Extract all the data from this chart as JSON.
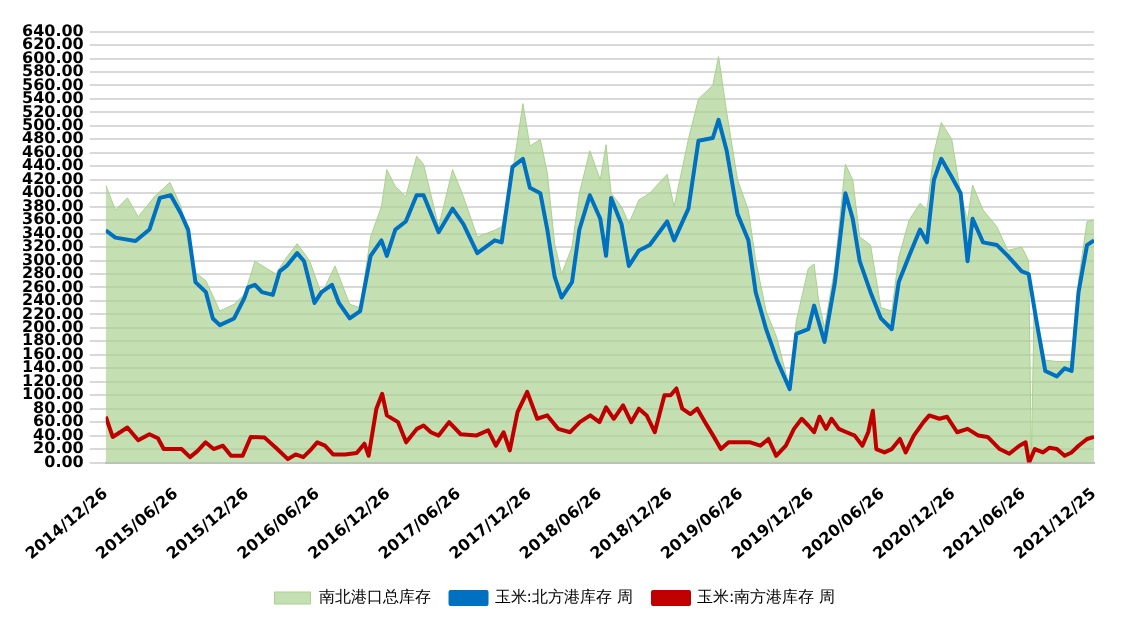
{
  "chart_data": {
    "type": "line",
    "legend": "bottom",
    "grid": "y",
    "marker": "none",
    "line_style": "solid",
    "xlim": [
      "2014-12-26",
      "2021-12-25"
    ],
    "xticks": [
      {
        "value": "2014-12-26",
        "label": "2014/12/26"
      },
      {
        "value": "2015-06-26",
        "label": "2015/06/26"
      },
      {
        "value": "2015-12-26",
        "label": "2015/12/26"
      },
      {
        "value": "2016-06-26",
        "label": "2016/06/26"
      },
      {
        "value": "2016-12-26",
        "label": "2016/12/26"
      },
      {
        "value": "2017-06-26",
        "label": "2017/06/26"
      },
      {
        "value": "2017-12-26",
        "label": "2017/12/26"
      },
      {
        "value": "2018-06-26",
        "label": "2018/06/26"
      },
      {
        "value": "2018-12-26",
        "label": "2018/12/26"
      },
      {
        "value": "2019-06-26",
        "label": "2019/06/26"
      },
      {
        "value": "2019-12-26",
        "label": "2019/12/26"
      },
      {
        "value": "2020-06-26",
        "label": "2020/06/26"
      },
      {
        "value": "2020-12-26",
        "label": "2020/12/26"
      },
      {
        "value": "2021-06-26",
        "label": "2021/06/26"
      },
      {
        "value": "2021-12-25",
        "label": "2021/12/25"
      }
    ],
    "ylim": [
      0,
      640
    ],
    "yticks": [
      {
        "value": 0,
        "label": "0.00"
      },
      {
        "value": 20,
        "label": "20.00"
      },
      {
        "value": 40,
        "label": "40.00"
      },
      {
        "value": 60,
        "label": "60.00"
      },
      {
        "value": 80,
        "label": "80.00"
      },
      {
        "value": 100,
        "label": "100.00"
      },
      {
        "value": 120,
        "label": "120.00"
      },
      {
        "value": 140,
        "label": "140.00"
      },
      {
        "value": 160,
        "label": "160.00"
      },
      {
        "value": 180,
        "label": "180.00"
      },
      {
        "value": 200,
        "label": "200.00"
      },
      {
        "value": 220,
        "label": "220.00"
      },
      {
        "value": 240,
        "label": "240.00"
      },
      {
        "value": 260,
        "label": "260.00"
      },
      {
        "value": 280,
        "label": "280.00"
      },
      {
        "value": 300,
        "label": "300.00"
      },
      {
        "value": 320,
        "label": "320.00"
      },
      {
        "value": 340,
        "label": "340.00"
      },
      {
        "value": 360,
        "label": "360.00"
      },
      {
        "value": 380,
        "label": "380.00"
      },
      {
        "value": 400,
        "label": "400.00"
      },
      {
        "value": 420,
        "label": "420.00"
      },
      {
        "value": 440,
        "label": "440.00"
      },
      {
        "value": 460,
        "label": "460.00"
      },
      {
        "value": 480,
        "label": "480.00"
      },
      {
        "value": 500,
        "label": "500.00"
      },
      {
        "value": 520,
        "label": "520.00"
      },
      {
        "value": 540,
        "label": "540.00"
      },
      {
        "value": 560,
        "label": "560.00"
      },
      {
        "value": 580,
        "label": "580.00"
      },
      {
        "value": 600,
        "label": "600.00"
      },
      {
        "value": 620,
        "label": "620.00"
      },
      {
        "value": 640,
        "label": "640.00"
      }
    ],
    "series": [
      {
        "name": "南北港口总库存",
        "type": "area",
        "color": "#a9d18e",
        "x": [
          "2014-12-26",
          "2015-01-20",
          "2015-02-20",
          "2015-03-20",
          "2015-05-01",
          "2015-06-10",
          "2015-07-09",
          "2015-08-10",
          "2015-09-11",
          "2015-10-17",
          "2015-11-23",
          "2015-12-20",
          "2016-01-16",
          "2016-02-10",
          "2016-03-10",
          "2016-04-07",
          "2016-05-04",
          "2016-06-05",
          "2016-07-06",
          "2016-08-10",
          "2016-09-17",
          "2016-10-14",
          "2016-11-10",
          "2016-12-08",
          "2016-12-22",
          "2017-01-13",
          "2017-02-09",
          "2017-03-09",
          "2017-03-27",
          "2017-05-05",
          "2017-06-10",
          "2017-07-08",
          "2017-08-13",
          "2017-09-27",
          "2017-10-15",
          "2017-11-12",
          "2017-12-09",
          "2017-12-27",
          "2018-01-23",
          "2018-02-10",
          "2018-03-01",
          "2018-03-19",
          "2018-04-15",
          "2018-05-04",
          "2018-05-31",
          "2018-06-27",
          "2018-07-12",
          "2018-07-25",
          "2018-08-21",
          "2018-09-09",
          "2018-10-05",
          "2018-11-02",
          "2018-12-17",
          "2019-01-04",
          "2019-02-10",
          "2019-03-08",
          "2019-04-14",
          "2019-04-29",
          "2019-05-20",
          "2019-06-17",
          "2019-07-15",
          "2019-08-03",
          "2019-08-30",
          "2019-09-27",
          "2019-10-30",
          "2019-11-16",
          "2019-12-17",
          "2020-01-01",
          "2020-01-13",
          "2020-01-28",
          "2020-02-24",
          "2020-03-22",
          "2020-04-10",
          "2020-04-28",
          "2020-05-26",
          "2020-06-22",
          "2020-07-20",
          "2020-08-07",
          "2020-09-03",
          "2020-10-01",
          "2020-10-19",
          "2020-11-06",
          "2020-11-25",
          "2020-12-22",
          "2021-01-14",
          "2021-02-01",
          "2021-02-14",
          "2021-03-13",
          "2021-04-18",
          "2021-05-16",
          "2021-06-21",
          "2021-07-09",
          "2021-07-16",
          "2021-07-23",
          "2021-08-21",
          "2021-09-20",
          "2021-10-10",
          "2021-10-28",
          "2021-11-15",
          "2021-12-07",
          "2021-12-25"
        ],
        "values": [
          412,
          375,
          393,
          365,
          395,
          416,
          380,
          284,
          270,
          225,
          235,
          250,
          299,
          290,
          280,
          305,
          325,
          300,
          250,
          292,
          235,
          230,
          335,
          380,
          435,
          410,
          395,
          455,
          443,
          350,
          435,
          395,
          335,
          345,
          350,
          430,
          533,
          470,
          480,
          430,
          325,
          280,
          320,
          400,
          463,
          420,
          472,
          400,
          380,
          355,
          390,
          400,
          428,
          380,
          480,
          540,
          560,
          603,
          520,
          420,
          375,
          300,
          225,
          185,
          110,
          210,
          288,
          295,
          240,
          200,
          290,
          443,
          420,
          335,
          323,
          230,
          225,
          305,
          360,
          385,
          375,
          460,
          505,
          480,
          400,
          360,
          412,
          375,
          350,
          315,
          320,
          300,
          0,
          235,
          152,
          150,
          150,
          150,
          270,
          358,
          360
        ]
      },
      {
        "name": "玉米:北方港库存 周",
        "type": "line",
        "color": "#0070c0",
        "x": [
          "2014-12-26",
          "2015-01-20",
          "2015-03-13",
          "2015-04-18",
          "2015-05-15",
          "2015-06-12",
          "2015-07-09",
          "2015-07-27",
          "2015-08-15",
          "2015-09-11",
          "2015-09-29",
          "2015-10-17",
          "2015-11-23",
          "2015-12-20",
          "2015-12-29",
          "2016-01-16",
          "2016-02-03",
          "2016-03-02",
          "2016-03-20",
          "2016-04-07",
          "2016-05-04",
          "2016-05-22",
          "2016-06-18",
          "2016-07-06",
          "2016-08-02",
          "2016-08-20",
          "2016-09-17",
          "2016-10-14",
          "2016-11-10",
          "2016-12-08",
          "2016-12-22",
          "2017-01-13",
          "2017-02-09",
          "2017-03-09",
          "2017-03-27",
          "2017-05-05",
          "2017-06-10",
          "2017-07-08",
          "2017-08-13",
          "2017-09-27",
          "2017-10-15",
          "2017-11-12",
          "2017-12-09",
          "2017-12-27",
          "2018-01-23",
          "2018-02-10",
          "2018-03-01",
          "2018-03-19",
          "2018-04-15",
          "2018-05-04",
          "2018-05-31",
          "2018-06-27",
          "2018-07-12",
          "2018-07-25",
          "2018-08-21",
          "2018-09-09",
          "2018-10-05",
          "2018-11-02",
          "2018-12-17",
          "2019-01-04",
          "2019-02-10",
          "2019-03-08",
          "2019-04-14",
          "2019-04-29",
          "2019-05-20",
          "2019-06-17",
          "2019-07-15",
          "2019-08-03",
          "2019-08-30",
          "2019-09-27",
          "2019-10-30",
          "2019-11-16",
          "2019-12-17",
          "2020-01-01",
          "2020-01-28",
          "2020-02-24",
          "2020-03-22",
          "2020-04-10",
          "2020-04-28",
          "2020-05-26",
          "2020-06-22",
          "2020-07-20",
          "2020-08-07",
          "2020-09-03",
          "2020-10-01",
          "2020-10-19",
          "2020-11-06",
          "2020-11-25",
          "2020-12-22",
          "2021-01-14",
          "2021-02-01",
          "2021-02-14",
          "2021-03-13",
          "2021-04-18",
          "2021-05-16",
          "2021-06-21",
          "2021-07-09",
          "2021-07-28",
          "2021-08-21",
          "2021-09-20",
          "2021-10-10",
          "2021-10-28",
          "2021-11-15",
          "2021-12-07",
          "2021-12-25"
        ],
        "values": [
          345,
          334,
          329,
          346,
          393,
          397,
          369,
          346,
          268,
          253,
          214,
          204,
          214,
          245,
          260,
          264,
          253,
          249,
          284,
          292,
          311,
          299,
          237,
          253,
          264,
          237,
          214,
          225,
          307,
          330,
          307,
          346,
          358,
          397,
          397,
          342,
          377,
          354,
          311,
          330,
          327,
          439,
          451,
          408,
          400,
          346,
          276,
          245,
          268,
          346,
          397,
          362,
          307,
          393,
          354,
          292,
          315,
          323,
          358,
          330,
          377,
          478,
          482,
          509,
          463,
          369,
          330,
          253,
          198,
          152,
          109,
          191,
          198,
          233,
          179,
          268,
          400,
          362,
          299,
          253,
          214,
          198,
          268,
          307,
          346,
          327,
          420,
          451,
          424,
          400,
          299,
          362,
          327,
          323,
          307,
          284,
          280,
          214,
          136,
          128,
          140,
          136,
          253,
          323,
          330
        ]
      },
      {
        "name": "玉米:南方港库存 周",
        "type": "line",
        "color": "#c00000",
        "x": [
          "2014-12-26",
          "2015-01-13",
          "2015-02-20",
          "2015-03-20",
          "2015-04-18",
          "2015-05-10",
          "2015-05-25",
          "2015-07-10",
          "2015-08-01",
          "2015-08-20",
          "2015-09-10",
          "2015-10-01",
          "2015-10-25",
          "2015-11-15",
          "2015-12-15",
          "2016-01-05",
          "2016-02-10",
          "2016-03-10",
          "2016-04-10",
          "2016-04-30",
          "2016-05-20",
          "2016-06-10",
          "2016-06-25",
          "2016-07-15",
          "2016-08-05",
          "2016-09-05",
          "2016-10-05",
          "2016-10-25",
          "2016-11-05",
          "2016-11-25",
          "2016-12-10",
          "2016-12-22",
          "2017-01-20",
          "2017-02-10",
          "2017-03-10",
          "2017-03-27",
          "2017-04-15",
          "2017-05-05",
          "2017-06-01",
          "2017-07-01",
          "2017-08-10",
          "2017-09-10",
          "2017-09-30",
          "2017-10-20",
          "2017-11-05",
          "2017-11-25",
          "2017-12-20",
          "2018-01-15",
          "2018-02-10",
          "2018-03-10",
          "2018-04-10",
          "2018-05-05",
          "2018-06-01",
          "2018-06-25",
          "2018-07-12",
          "2018-08-01",
          "2018-08-25",
          "2018-09-15",
          "2018-10-05",
          "2018-10-25",
          "2018-11-15",
          "2018-12-10",
          "2018-12-26",
          "2019-01-10",
          "2019-01-25",
          "2019-02-15",
          "2019-03-05",
          "2019-03-25",
          "2019-04-15",
          "2019-05-05",
          "2019-05-25",
          "2019-06-20",
          "2019-07-20",
          "2019-08-15",
          "2019-09-05",
          "2019-09-25",
          "2019-10-20",
          "2019-11-10",
          "2019-11-30",
          "2019-12-17",
          "2020-01-01",
          "2020-01-15",
          "2020-02-01",
          "2020-02-15",
          "2020-03-05",
          "2020-03-25",
          "2020-04-15",
          "2020-05-05",
          "2020-05-20",
          "2020-06-01",
          "2020-06-10",
          "2020-07-01",
          "2020-07-20",
          "2020-08-10",
          "2020-08-25",
          "2020-09-15",
          "2020-10-10",
          "2020-10-25",
          "2020-11-20",
          "2020-12-10",
          "2021-01-05",
          "2021-02-01",
          "2021-03-01",
          "2021-03-25",
          "2021-04-25",
          "2021-05-20",
          "2021-06-15",
          "2021-07-01",
          "2021-07-10",
          "2021-07-25",
          "2021-08-15",
          "2021-09-01",
          "2021-09-20",
          "2021-10-10",
          "2021-10-28",
          "2021-11-15",
          "2021-12-07",
          "2021-12-25"
        ],
        "values": [
          68,
          38,
          52,
          33,
          42,
          36,
          20,
          20,
          8,
          17,
          30,
          20,
          25,
          10,
          10,
          38,
          37,
          22,
          5,
          12,
          8,
          20,
          30,
          25,
          12,
          12,
          14,
          28,
          10,
          80,
          102,
          70,
          60,
          30,
          50,
          55,
          45,
          40,
          60,
          42,
          40,
          48,
          25,
          45,
          18,
          75,
          105,
          65,
          70,
          50,
          45,
          60,
          70,
          60,
          82,
          65,
          85,
          60,
          80,
          70,
          45,
          100,
          100,
          110,
          80,
          72,
          80,
          60,
          40,
          20,
          30,
          30,
          30,
          25,
          35,
          10,
          25,
          50,
          65,
          55,
          45,
          68,
          50,
          65,
          50,
          45,
          40,
          25,
          45,
          77,
          20,
          15,
          20,
          35,
          15,
          40,
          60,
          70,
          65,
          68,
          45,
          50,
          40,
          38,
          20,
          13,
          25,
          30,
          0,
          20,
          15,
          22,
          20,
          10,
          15,
          25,
          35,
          38
        ]
      }
    ]
  }
}
